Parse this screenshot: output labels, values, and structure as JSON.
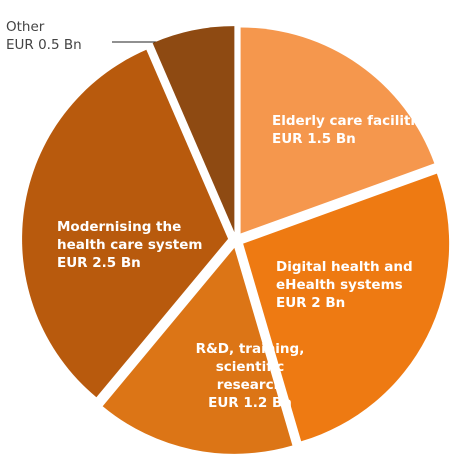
{
  "chart_data": {
    "type": "pie",
    "categories": [
      "Elderly care facilities",
      "Digital health and eHealth systems",
      "R&D, training, scientific research",
      "Modernising the health care system",
      "Other"
    ],
    "values": [
      1.5,
      2,
      1.2,
      2.5,
      0.5
    ],
    "value_labels": [
      "EUR 1.5 Bn",
      "EUR 2 Bn",
      "EUR 1.2 Bn",
      "EUR 2.5 Bn",
      "EUR 0.5 Bn"
    ],
    "colors": [
      "#f5974d",
      "#ee7a12",
      "#dc7516",
      "#b85a0d",
      "#8e4a12"
    ]
  }
}
